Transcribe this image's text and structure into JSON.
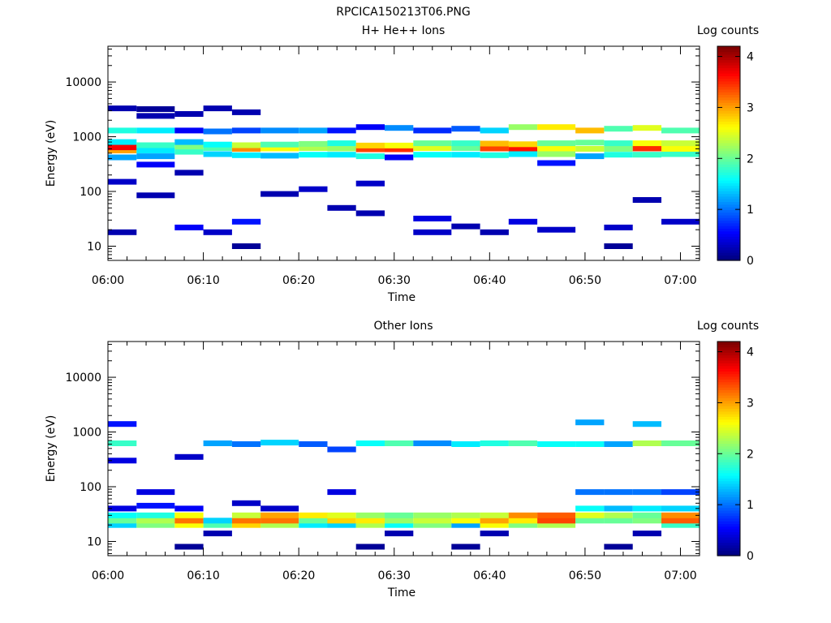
{
  "figure_title": "RPCICA150213T06.PNG",
  "chart_data": [
    {
      "type": "heatmap",
      "title": "H+ He++ Ions",
      "xlabel": "Time",
      "ylabel": "Energy (eV)",
      "colorbar_label": "Log counts",
      "x_range": [
        "06:00",
        "07:02"
      ],
      "x_ticks": [
        "06:00",
        "06:10",
        "06:20",
        "06:30",
        "06:40",
        "06:50",
        "07:00"
      ],
      "y_scale": "log",
      "y_range": [
        5.5,
        45000
      ],
      "y_ticks": [
        "10",
        "100",
        "1000",
        "10000"
      ],
      "colorbar_range": [
        0,
        4.2
      ],
      "colorbar_ticks": [
        "0",
        "1",
        "2",
        "3",
        "4"
      ],
      "colormap": "jet",
      "time_bins": [
        "06:00",
        "06:03",
        "06:07",
        "06:10",
        "06:13",
        "06:16",
        "06:20",
        "06:23",
        "06:26",
        "06:29",
        "06:32",
        "06:36",
        "06:39",
        "06:42",
        "06:45",
        "06:49",
        "06:52",
        "06:55",
        "06:58"
      ],
      "approx_cells": [
        {
          "t": 0,
          "e": [
            [
              18,
              0.2
            ],
            [
              150,
              0.3
            ],
            [
              420,
              1.2
            ],
            [
              560,
              3.0
            ],
            [
              640,
              3.7
            ],
            [
              800,
              1.5
            ],
            [
              1300,
              1.7
            ],
            [
              3300,
              0.2
            ]
          ]
        },
        {
          "t": 1,
          "e": [
            [
              85,
              0.2
            ],
            [
              310,
              0.5
            ],
            [
              440,
              1.2
            ],
            [
              560,
              1.5
            ],
            [
              700,
              1.8
            ],
            [
              1300,
              1.5
            ],
            [
              2400,
              0.2
            ],
            [
              3200,
              0.1
            ]
          ]
        },
        {
          "t": 2,
          "e": [
            [
              22,
              0.5
            ],
            [
              220,
              0.2
            ],
            [
              530,
              1.8
            ],
            [
              660,
              2.1
            ],
            [
              800,
              1.3
            ],
            [
              1300,
              0.5
            ],
            [
              2600,
              0.2
            ]
          ]
        },
        {
          "t": 3,
          "e": [
            [
              18,
              0.3
            ],
            [
              480,
              1.4
            ],
            [
              620,
              1.9
            ],
            [
              720,
              1.6
            ],
            [
              1250,
              1.0
            ],
            [
              3300,
              0.2
            ]
          ]
        },
        {
          "t": 4,
          "e": [
            [
              10,
              0.1
            ],
            [
              28,
              0.6
            ],
            [
              460,
              1.5
            ],
            [
              600,
              3.1
            ],
            [
              700,
              2.4
            ],
            [
              1300,
              0.8
            ],
            [
              2800,
              0.2
            ]
          ]
        },
        {
          "t": 5,
          "e": [
            [
              90,
              0.2
            ],
            [
              450,
              1.3
            ],
            [
              610,
              2.6
            ],
            [
              720,
              1.9
            ],
            [
              1300,
              1.1
            ]
          ]
        },
        {
          "t": 6,
          "e": [
            [
              110,
              0.3
            ],
            [
              470,
              1.6
            ],
            [
              620,
              2.3
            ],
            [
              740,
              2.1
            ],
            [
              1300,
              1.2
            ]
          ]
        },
        {
          "t": 7,
          "e": [
            [
              50,
              0.2
            ],
            [
              470,
              1.5
            ],
            [
              610,
              2.2
            ],
            [
              760,
              1.7
            ],
            [
              1300,
              0.6
            ]
          ]
        },
        {
          "t": 8,
          "e": [
            [
              40,
              0.2
            ],
            [
              140,
              0.3
            ],
            [
              440,
              1.7
            ],
            [
              590,
              3.4
            ],
            [
              690,
              2.8
            ],
            [
              1500,
              0.5
            ]
          ]
        },
        {
          "t": 9,
          "e": [
            [
              420,
              0.5
            ],
            [
              590,
              3.5
            ],
            [
              690,
              2.6
            ],
            [
              1450,
              1.1
            ]
          ]
        },
        {
          "t": 10,
          "e": [
            [
              18,
              0.3
            ],
            [
              32,
              0.4
            ],
            [
              470,
              1.6
            ],
            [
              620,
              2.5
            ],
            [
              760,
              2.0
            ],
            [
              1300,
              0.7
            ]
          ]
        },
        {
          "t": 11,
          "e": [
            [
              23,
              0.2
            ],
            [
              470,
              1.5
            ],
            [
              620,
              2.0
            ],
            [
              760,
              1.8
            ],
            [
              1400,
              0.9
            ]
          ]
        },
        {
          "t": 12,
          "e": [
            [
              18,
              0.2
            ],
            [
              460,
              1.7
            ],
            [
              610,
              3.4
            ],
            [
              750,
              2.9
            ],
            [
              1300,
              1.4
            ]
          ]
        },
        {
          "t": 13,
          "e": [
            [
              28,
              0.4
            ],
            [
              480,
              1.5
            ],
            [
              610,
              3.6
            ],
            [
              730,
              2.8
            ],
            [
              1500,
              2.2
            ]
          ]
        },
        {
          "t": 14,
          "e": [
            [
              20,
              0.3
            ],
            [
              330,
              0.6
            ],
            [
              480,
              2.2
            ],
            [
              610,
              2.6
            ],
            [
              760,
              2.0
            ],
            [
              1500,
              2.7
            ]
          ]
        },
        {
          "t": 15,
          "e": [
            [
              440,
              1.2
            ],
            [
              600,
              2.4
            ],
            [
              780,
              2.0
            ],
            [
              1300,
              2.9
            ]
          ]
        },
        {
          "t": 16,
          "e": [
            [
              10,
              0.1
            ],
            [
              22,
              0.3
            ],
            [
              470,
              1.7
            ],
            [
              600,
              2.1
            ],
            [
              760,
              1.8
            ],
            [
              1400,
              1.9
            ]
          ]
        },
        {
          "t": 17,
          "e": [
            [
              70,
              0.2
            ],
            [
              470,
              1.8
            ],
            [
              610,
              3.5
            ],
            [
              760,
              2.6
            ],
            [
              1450,
              2.5
            ]
          ]
        },
        {
          "t": 18,
          "e": [
            [
              28,
              0.3
            ],
            [
              480,
              1.8
            ],
            [
              600,
              2.6
            ],
            [
              760,
              2.4
            ],
            [
              1300,
              1.9
            ]
          ]
        }
      ]
    },
    {
      "type": "heatmap",
      "title": "Other Ions",
      "xlabel": "Time",
      "ylabel": "Energy (eV)",
      "colorbar_label": "Log counts",
      "x_range": [
        "06:00",
        "07:02"
      ],
      "x_ticks": [
        "06:00",
        "06:10",
        "06:20",
        "06:30",
        "06:40",
        "06:50",
        "07:00"
      ],
      "y_scale": "log",
      "y_range": [
        5.5,
        45000
      ],
      "y_ticks": [
        "10",
        "100",
        "1000",
        "10000"
      ],
      "colorbar_range": [
        0,
        4.2
      ],
      "colorbar_ticks": [
        "0",
        "1",
        "2",
        "3",
        "4"
      ],
      "colormap": "jet",
      "time_bins": [
        "06:00",
        "06:03",
        "06:07",
        "06:10",
        "06:13",
        "06:16",
        "06:20",
        "06:23",
        "06:26",
        "06:29",
        "06:32",
        "06:36",
        "06:39",
        "06:42",
        "06:45",
        "06:49",
        "06:52",
        "06:55",
        "06:58"
      ],
      "approx_cells": [
        {
          "t": 0,
          "e": [
            [
              20,
              1.4
            ],
            [
              24,
              2.0
            ],
            [
              30,
              1.6
            ],
            [
              40,
              0.4
            ],
            [
              300,
              0.4
            ],
            [
              620,
              1.8
            ],
            [
              1400,
              0.6
            ]
          ]
        },
        {
          "t": 1,
          "e": [
            [
              20,
              2.1
            ],
            [
              24,
              2.3
            ],
            [
              30,
              1.7
            ],
            [
              45,
              0.6
            ],
            [
              80,
              0.4
            ]
          ]
        },
        {
          "t": 2,
          "e": [
            [
              8,
              0.1
            ],
            [
              20,
              2.6
            ],
            [
              24,
              3.2
            ],
            [
              30,
              2.6
            ],
            [
              40,
              0.5
            ],
            [
              350,
              0.3
            ]
          ]
        },
        {
          "t": 3,
          "e": [
            [
              14,
              0.2
            ],
            [
              20,
              1.9
            ],
            [
              24,
              1.4
            ],
            [
              620,
              1.2
            ]
          ]
        },
        {
          "t": 4,
          "e": [
            [
              20,
              2.8
            ],
            [
              24,
              3.2
            ],
            [
              30,
              2.4
            ],
            [
              50,
              0.3
            ],
            [
              600,
              1.0
            ]
          ]
        },
        {
          "t": 5,
          "e": [
            [
              20,
              2.3
            ],
            [
              24,
              3.2
            ],
            [
              30,
              3.0
            ],
            [
              40,
              0.3
            ],
            [
              640,
              1.4
            ]
          ]
        },
        {
          "t": 6,
          "e": [
            [
              20,
              1.5
            ],
            [
              24,
              2.0
            ],
            [
              30,
              2.7
            ],
            [
              600,
              0.9
            ]
          ]
        },
        {
          "t": 7,
          "e": [
            [
              20,
              1.4
            ],
            [
              24,
              2.8
            ],
            [
              30,
              2.5
            ],
            [
              80,
              0.4
            ],
            [
              480,
              0.8
            ]
          ]
        },
        {
          "t": 8,
          "e": [
            [
              8,
              0.1
            ],
            [
              20,
              2.3
            ],
            [
              24,
              2.7
            ],
            [
              30,
              2.2
            ],
            [
              620,
              1.6
            ]
          ]
        },
        {
          "t": 9,
          "e": [
            [
              14,
              0.2
            ],
            [
              20,
              1.6
            ],
            [
              24,
              2.2
            ],
            [
              30,
              2.0
            ],
            [
              620,
              1.9
            ]
          ]
        },
        {
          "t": 10,
          "e": [
            [
              20,
              2.1
            ],
            [
              24,
              2.4
            ],
            [
              30,
              2.2
            ],
            [
              620,
              1.1
            ]
          ]
        },
        {
          "t": 11,
          "e": [
            [
              8,
              0.1
            ],
            [
              20,
              1.2
            ],
            [
              24,
              2.6
            ],
            [
              30,
              2.3
            ],
            [
              600,
              1.5
            ]
          ]
        },
        {
          "t": 12,
          "e": [
            [
              14,
              0.2
            ],
            [
              20,
              2.6
            ],
            [
              24,
              3.0
            ],
            [
              30,
              2.4
            ],
            [
              620,
              1.7
            ]
          ]
        },
        {
          "t": 13,
          "e": [
            [
              20,
              2.1
            ],
            [
              24,
              2.7
            ],
            [
              30,
              3.1
            ],
            [
              620,
              1.9
            ]
          ]
        },
        {
          "t": 14,
          "e": [
            [
              20,
              2.3
            ],
            [
              24,
              3.4
            ],
            [
              30,
              3.3
            ],
            [
              600,
              1.6
            ]
          ]
        },
        {
          "t": 15,
          "e": [
            [
              24,
              2.0
            ],
            [
              30,
              2.5
            ],
            [
              40,
              1.6
            ],
            [
              80,
              1.0
            ],
            [
              600,
              1.6
            ],
            [
              1500,
              1.2
            ]
          ]
        },
        {
          "t": 16,
          "e": [
            [
              8,
              0.1
            ],
            [
              24,
              2.0
            ],
            [
              30,
              2.3
            ],
            [
              40,
              1.3
            ],
            [
              80,
              1.0
            ],
            [
              600,
              1.2
            ]
          ]
        },
        {
          "t": 17,
          "e": [
            [
              14,
              0.2
            ],
            [
              24,
              2.1
            ],
            [
              30,
              2.0
            ],
            [
              40,
              1.5
            ],
            [
              80,
              1.0
            ],
            [
              620,
              2.3
            ],
            [
              1400,
              1.3
            ]
          ]
        },
        {
          "t": 18,
          "e": [
            [
              20,
              1.8
            ],
            [
              24,
              3.3
            ],
            [
              30,
              3.1
            ],
            [
              40,
              1.4
            ],
            [
              80,
              0.8
            ],
            [
              620,
              2.0
            ]
          ]
        }
      ]
    }
  ]
}
